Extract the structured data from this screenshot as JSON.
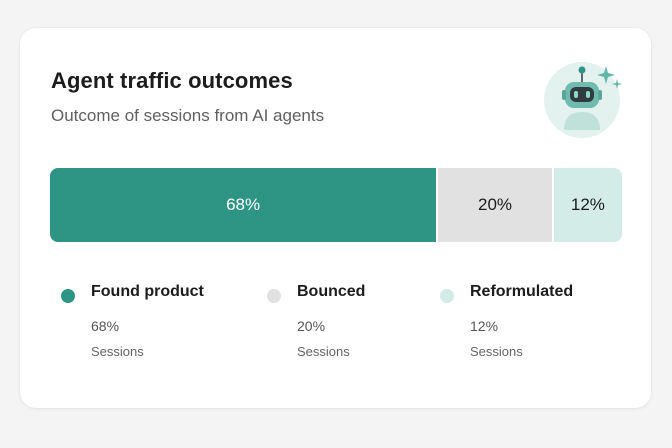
{
  "card": {
    "title": "Agent traffic outcomes",
    "subtitle": "Outcome of sessions from AI agents",
    "icon": "robot-icon"
  },
  "chart_data": {
    "type": "bar",
    "orientation": "horizontal-stacked-100",
    "categories": [
      "Found product",
      "Bounced",
      "Reformulated"
    ],
    "values": [
      68,
      20,
      12
    ],
    "value_labels": [
      "68%",
      "20%",
      "12%"
    ],
    "unit_label": "Sessions",
    "colors": [
      "#2e9484",
      "#e1e1e1",
      "#d3ece8"
    ],
    "label_colors": [
      "#ffffff",
      "#1c1c1c",
      "#1c1c1c"
    ],
    "legend_position": "bottom",
    "grid": false
  }
}
